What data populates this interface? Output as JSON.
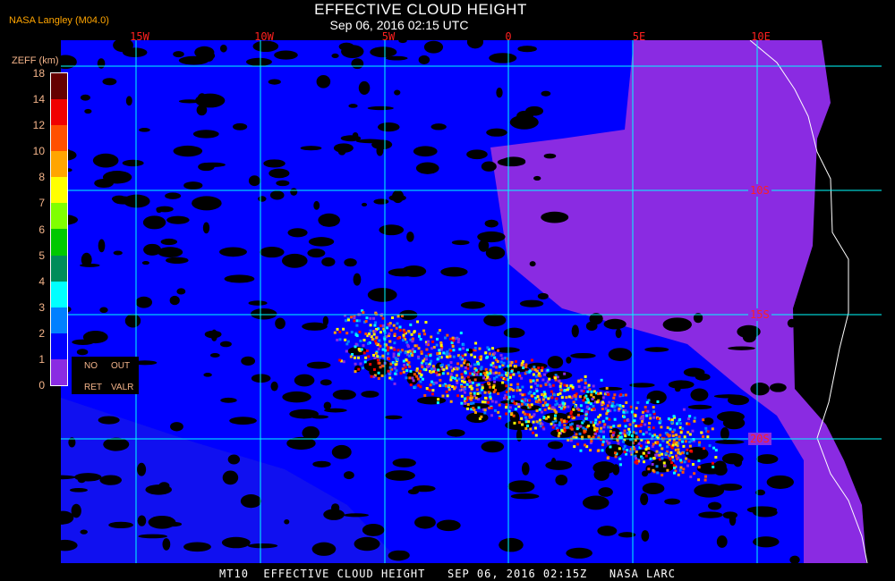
{
  "header": {
    "title": "EFFECTIVE CLOUD HEIGHT",
    "subtitle": "Sep 06, 2016 02:15 UTC",
    "brand": "NASA Langley (M04.0)"
  },
  "map": {
    "longitude_labels": [
      "15W",
      "10W",
      "5W",
      "0",
      "5E",
      "10E"
    ],
    "latitude_labels": [
      "10S",
      "15S",
      "20S"
    ],
    "colors": {
      "grid": "#00ffff",
      "coast": "#ffffff",
      "no_cloud": "#000000",
      "no_retrieval": "#8a2be2",
      "label": "#ff2020"
    }
  },
  "legend": {
    "title": "ZEFF (km)",
    "ticks": [
      "18",
      "14",
      "12",
      "10",
      "8",
      "7",
      "6",
      "5",
      "4",
      "3",
      "2",
      "1",
      "0"
    ],
    "colors": [
      "#640000",
      "#f00000",
      "#ff5000",
      "#ffa500",
      "#ffff00",
      "#80ff00",
      "#00c800",
      "#008c5a",
      "#00ffff",
      "#0080ff",
      "#0000ff",
      "#8a2be2"
    ],
    "no_ret_label": [
      "NO",
      "RET"
    ],
    "out_valr_label": [
      "OUT",
      "VALR"
    ]
  },
  "footer": {
    "text": "MT10  EFFECTIVE CLOUD HEIGHT   SEP 06, 2016 02:15Z   NASA LARC"
  }
}
